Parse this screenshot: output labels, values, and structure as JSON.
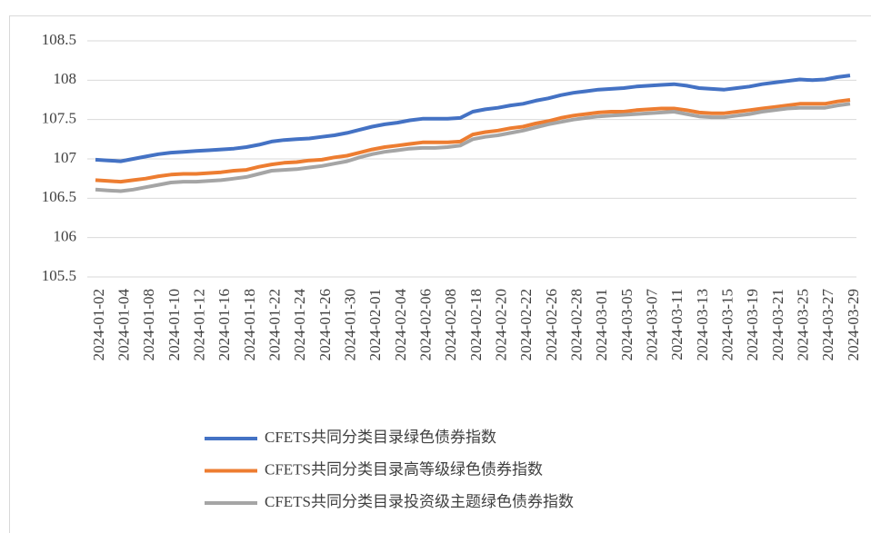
{
  "chart_data": {
    "type": "line",
    "categories": [
      "2024-01-02",
      null,
      "2024-01-04",
      null,
      "2024-01-08",
      null,
      "2024-01-10",
      null,
      "2024-01-12",
      null,
      "2024-01-16",
      null,
      "2024-01-18",
      null,
      "2024-01-22",
      null,
      "2024-01-24",
      null,
      "2024-01-26",
      null,
      "2024-01-30",
      null,
      "2024-02-01",
      null,
      "2024-02-04",
      null,
      "2024-02-06",
      null,
      "2024-02-08",
      null,
      "2024-02-18",
      null,
      "2024-02-20",
      null,
      "2024-02-22",
      null,
      "2024-02-26",
      null,
      "2024-02-28",
      null,
      "2024-03-01",
      null,
      "2024-03-05",
      null,
      "2024-03-07",
      null,
      "2024-03-11",
      null,
      "2024-03-13",
      null,
      "2024-03-15",
      null,
      "2024-03-19",
      null,
      "2024-03-21",
      null,
      "2024-03-25",
      null,
      "2024-03-27",
      null,
      "2024-03-29"
    ],
    "series": [
      {
        "name": "CFETS共同分类目录绿色债券指数",
        "color": "#4472c4",
        "values": [
          106.99,
          106.98,
          106.97,
          107.0,
          107.03,
          107.06,
          107.08,
          107.09,
          107.1,
          107.11,
          107.12,
          107.13,
          107.15,
          107.18,
          107.22,
          107.24,
          107.25,
          107.26,
          107.28,
          107.3,
          107.33,
          107.37,
          107.41,
          107.44,
          107.46,
          107.49,
          107.51,
          107.51,
          107.51,
          107.52,
          107.6,
          107.63,
          107.65,
          107.68,
          107.7,
          107.74,
          107.77,
          107.81,
          107.84,
          107.86,
          107.88,
          107.89,
          107.9,
          107.92,
          107.93,
          107.94,
          107.95,
          107.93,
          107.9,
          107.89,
          107.88,
          107.9,
          107.92,
          107.95,
          107.97,
          107.99,
          108.01,
          108.0,
          108.01,
          108.04,
          108.06
        ]
      },
      {
        "name": "CFETS共同分类目录高等级绿色债券指数",
        "color": "#ed7d31",
        "values": [
          106.73,
          106.72,
          106.71,
          106.73,
          106.75,
          106.78,
          106.8,
          106.81,
          106.81,
          106.82,
          106.83,
          106.85,
          106.86,
          106.9,
          106.93,
          106.95,
          106.96,
          106.98,
          106.99,
          107.02,
          107.04,
          107.08,
          107.12,
          107.15,
          107.17,
          107.19,
          107.21,
          107.21,
          107.21,
          107.22,
          107.31,
          107.34,
          107.36,
          107.39,
          107.41,
          107.45,
          107.48,
          107.52,
          107.55,
          107.57,
          107.59,
          107.6,
          107.6,
          107.62,
          107.63,
          107.64,
          107.64,
          107.62,
          107.59,
          107.58,
          107.58,
          107.6,
          107.62,
          107.64,
          107.66,
          107.68,
          107.7,
          107.7,
          107.7,
          107.73,
          107.75
        ]
      },
      {
        "name": "CFETS共同分类目录投资级主题绿色债券指数",
        "color": "#a5a5a5",
        "values": [
          106.61,
          106.6,
          106.59,
          106.61,
          106.64,
          106.67,
          106.7,
          106.71,
          106.71,
          106.72,
          106.73,
          106.75,
          106.77,
          106.81,
          106.85,
          106.86,
          106.87,
          106.89,
          106.91,
          106.94,
          106.97,
          107.02,
          107.06,
          107.09,
          107.11,
          107.13,
          107.14,
          107.14,
          107.15,
          107.17,
          107.25,
          107.28,
          107.3,
          107.33,
          107.36,
          107.4,
          107.44,
          107.47,
          107.5,
          107.52,
          107.54,
          107.55,
          107.56,
          107.57,
          107.58,
          107.59,
          107.6,
          107.57,
          107.54,
          107.53,
          107.53,
          107.55,
          107.57,
          107.6,
          107.62,
          107.64,
          107.65,
          107.65,
          107.65,
          107.68,
          107.7
        ]
      }
    ],
    "ylim": [
      105.5,
      108.5
    ],
    "yticks": [
      105.5,
      106,
      106.5,
      107,
      107.5,
      108,
      108.5
    ],
    "grid": true,
    "legend": "bottom"
  }
}
